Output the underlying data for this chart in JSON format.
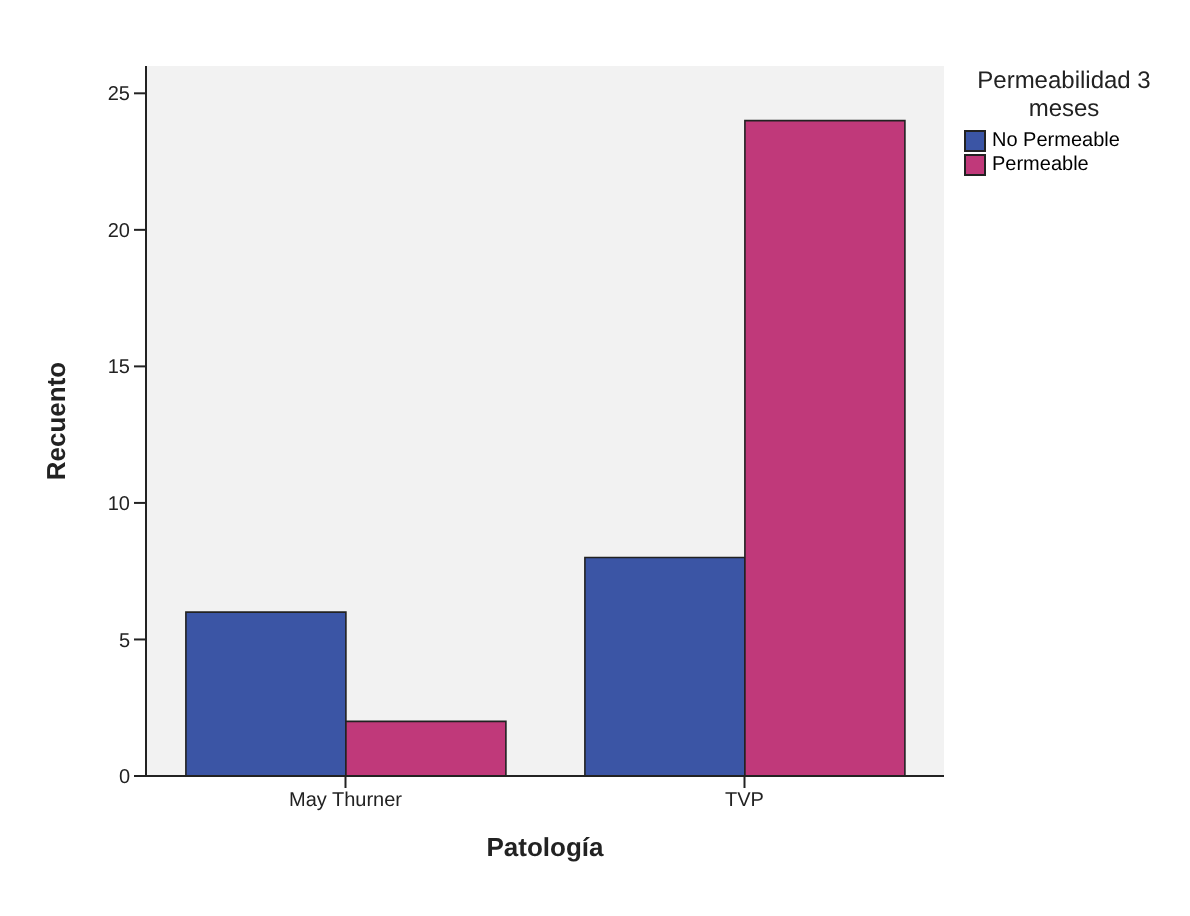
{
  "chart_data": {
    "type": "bar",
    "xlabel": "Patología",
    "ylabel": "Recuento",
    "legend_title": "Permeabilidad 3 meses",
    "categories": [
      "May Thurner",
      "TVP"
    ],
    "series": [
      {
        "name": "No Permeable",
        "color": "#3b55a5",
        "values": [
          6,
          8
        ]
      },
      {
        "name": "Permeable",
        "color": "#c0397a",
        "values": [
          2,
          24
        ]
      }
    ],
    "ylim": [
      0,
      26
    ],
    "yticks": [
      0,
      5,
      10,
      15,
      20,
      25
    ],
    "grid": false,
    "legend": "top right"
  }
}
